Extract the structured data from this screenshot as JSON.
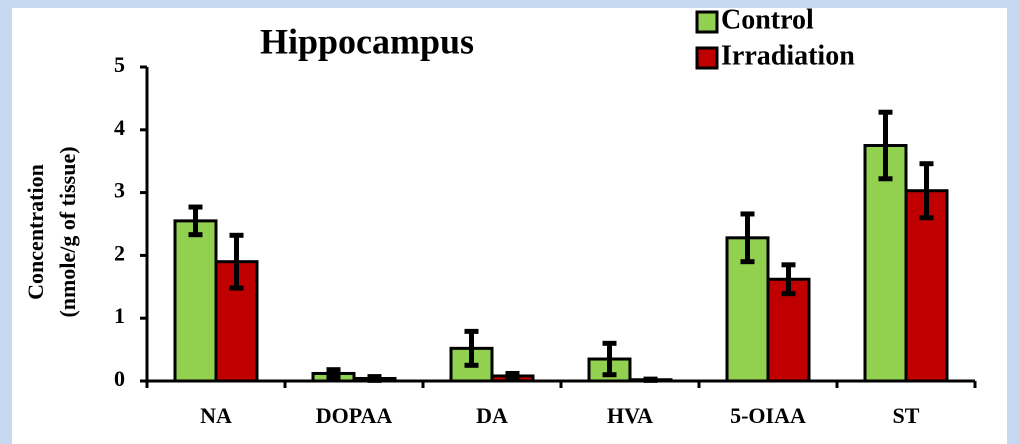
{
  "chart_data": {
    "type": "bar",
    "title": "Hippocampus",
    "ylabel": [
      "Concentration",
      "(nmole/g of tissue)"
    ],
    "categories": [
      "NA",
      "DOPAA",
      "DA",
      "HVA",
      "5-OIAA",
      "ST"
    ],
    "series": [
      {
        "name": "Control",
        "color": "#92d050",
        "values": [
          2.55,
          0.12,
          0.52,
          0.35,
          2.28,
          3.75
        ],
        "errors": [
          0.22,
          0.06,
          0.27,
          0.25,
          0.38,
          0.53
        ]
      },
      {
        "name": "Irradiation",
        "color": "#c00000",
        "values": [
          1.9,
          0.04,
          0.08,
          0.02,
          1.62,
          3.03
        ],
        "errors": [
          0.42,
          0.03,
          0.04,
          0.01,
          0.23,
          0.43
        ]
      }
    ],
    "ylim": [
      0,
      5
    ],
    "yticks": [
      0,
      1,
      2,
      3,
      4,
      5
    ],
    "grid": false
  }
}
